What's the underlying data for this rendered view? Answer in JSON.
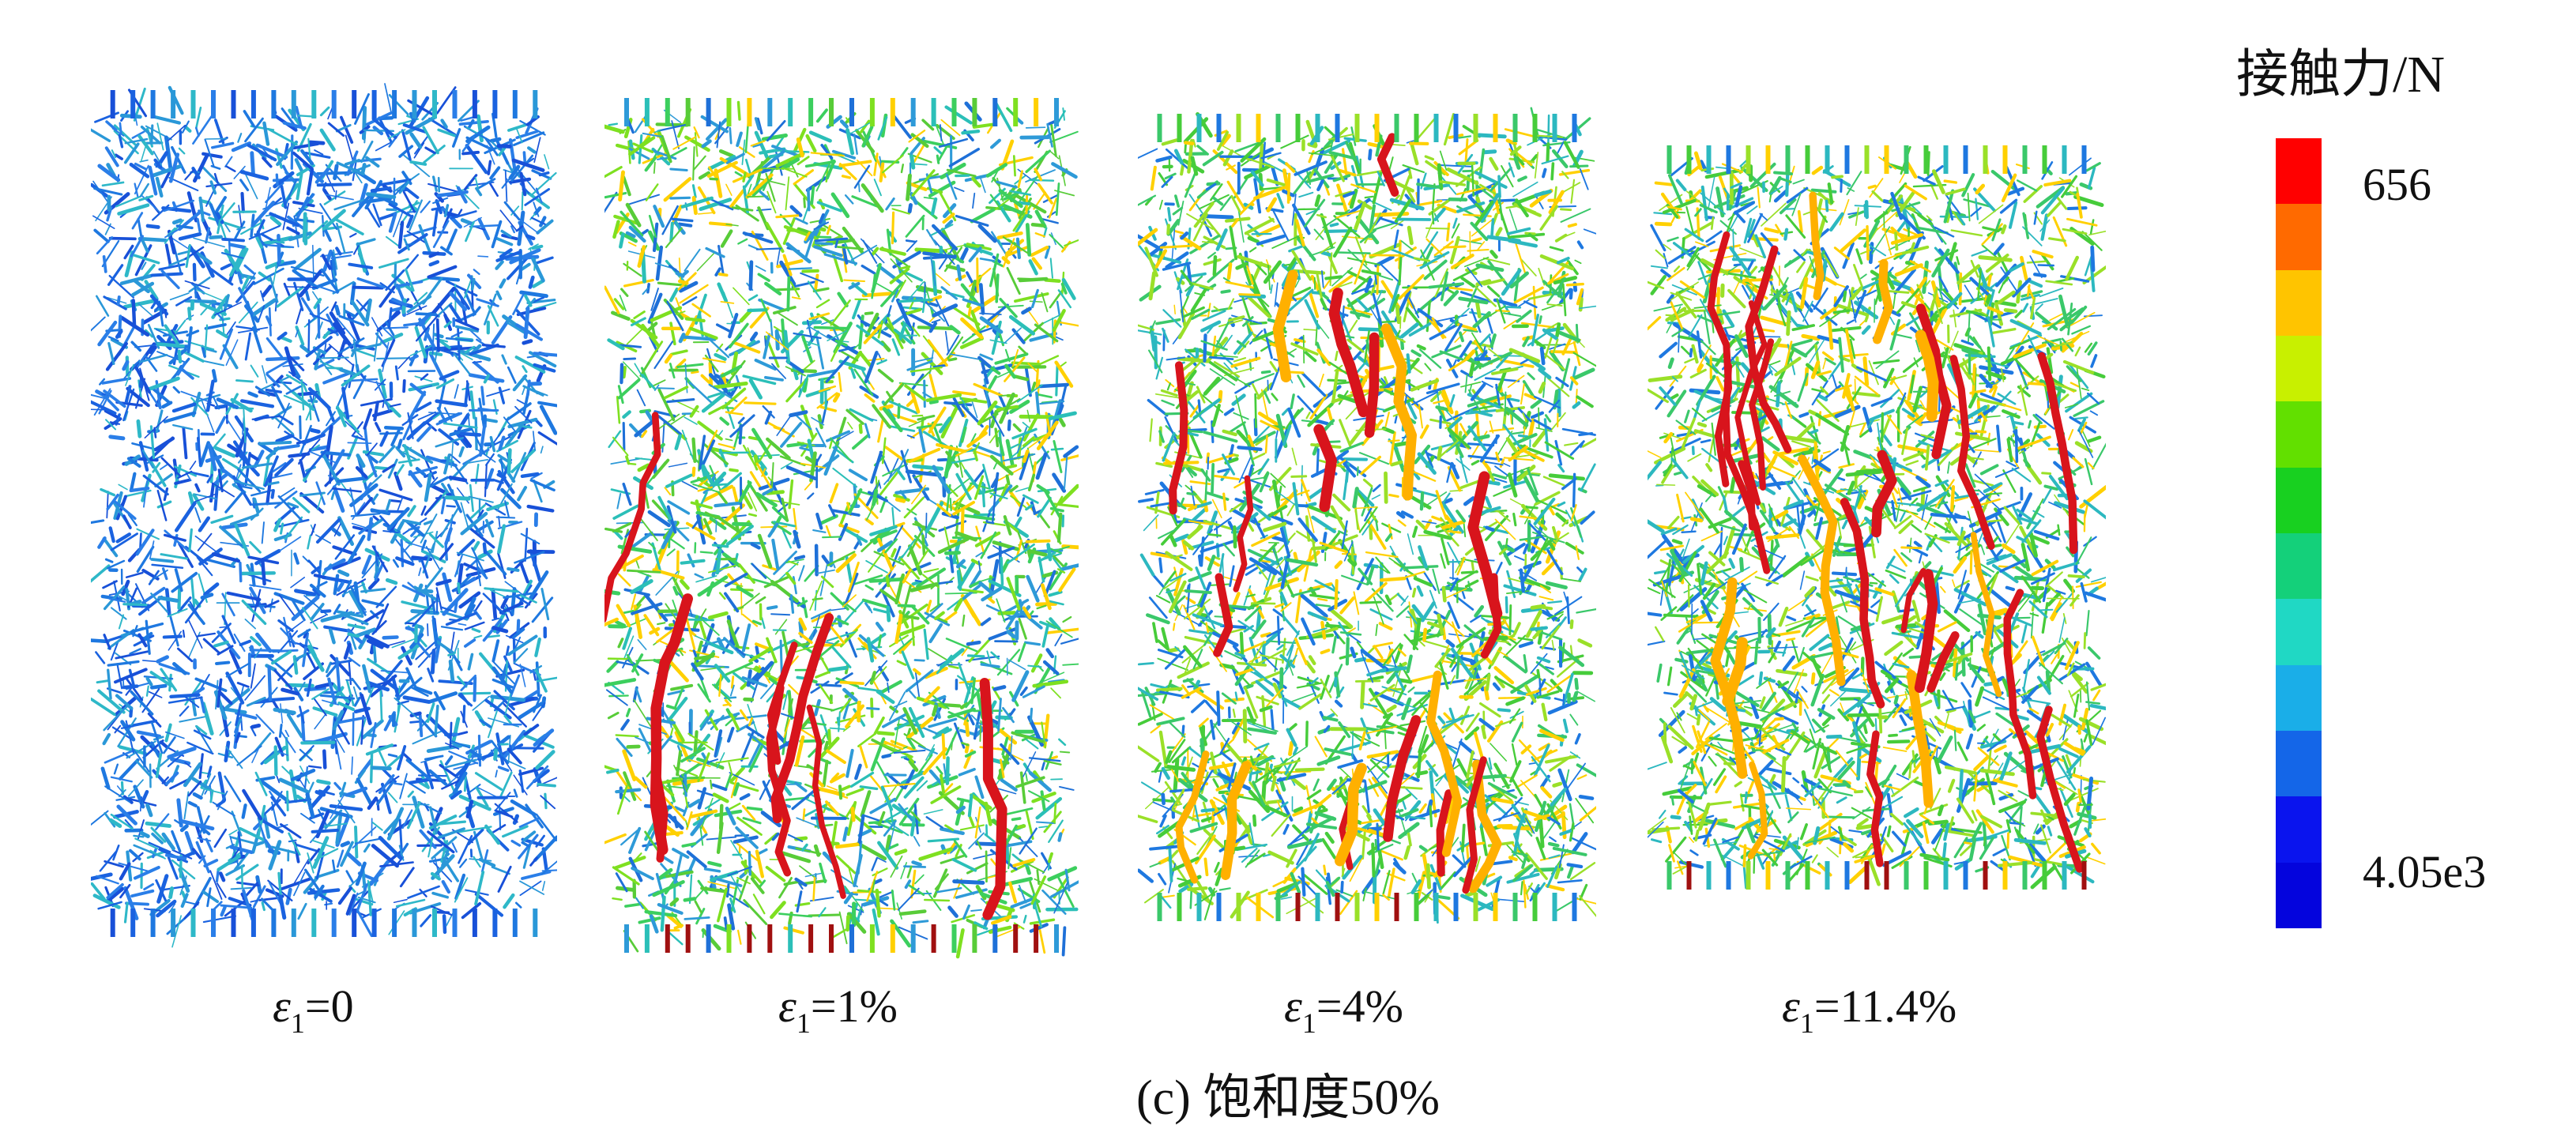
{
  "figure": {
    "caption": "(c) 饱和度50%",
    "legend": {
      "title": "接触力/N",
      "max_label": "656",
      "min_label": "4.05e3",
      "colors": [
        "#ff0000",
        "#ff6a00",
        "#ffc400",
        "#c8f000",
        "#62e000",
        "#18d020",
        "#14d07a",
        "#20d8c4",
        "#1aaee8",
        "#1466e8",
        "#0a14ee",
        "#0404dd"
      ]
    },
    "panels": [
      {
        "symbol": "ε",
        "subscript": "1",
        "value": "=0",
        "palette": [
          "#1850d8",
          "#1a62e0",
          "#1e78e0",
          "#2a98d8",
          "#2eb8c8",
          "#2a7ee8"
        ],
        "heavy": 0.0
      },
      {
        "symbol": "ε",
        "subscript": "1",
        "value": "=1%",
        "palette": [
          "#2e9ad8",
          "#2bbfb8",
          "#3ccf5e",
          "#58cc38",
          "#1e70d8",
          "#7ee020",
          "#ffd000"
        ],
        "heavy": 0.04
      },
      {
        "symbol": "ε",
        "subscript": "1",
        "value": "=4%",
        "palette": [
          "#3ac86a",
          "#46cc3a",
          "#2cb8c0",
          "#1e78e0",
          "#9ae028",
          "#ffd000"
        ],
        "heavy": 0.1
      },
      {
        "symbol": "ε",
        "subscript": "1",
        "value": "=11.4%",
        "palette": [
          "#3ac86a",
          "#46cc3a",
          "#2cb8c0",
          "#1e78e0",
          "#9ae028",
          "#ffd000"
        ],
        "heavy": 0.13
      }
    ]
  }
}
